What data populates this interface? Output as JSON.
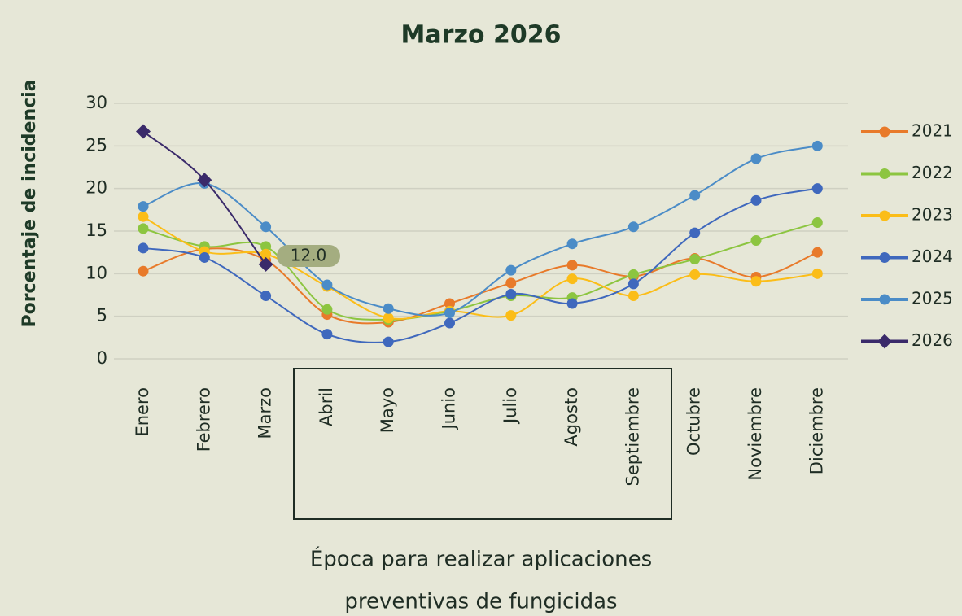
{
  "chart_data": {
    "type": "line",
    "title": "Marzo 2026",
    "ylabel": "Porcentaje de incidencia",
    "xlabel": [
      "Época para realizar aplicaciones",
      "preventivas de fungicidas"
    ],
    "annotation": "12.0",
    "categories": [
      "Enero",
      "Febrero",
      "Marzo",
      "Abril",
      "Mayo",
      "Junio",
      "Julio",
      "Agosto",
      "Septiembre",
      "Octubre",
      "Noviembre",
      "Diciembre"
    ],
    "ylim": [
      0,
      30
    ],
    "yticks": [
      0,
      5,
      10,
      15,
      20,
      25,
      30
    ],
    "grid": true,
    "legend": "right",
    "series": [
      {
        "name": "2021",
        "color": "#e87a2a",
        "marker": "circle",
        "values": [
          10.3,
          12.9,
          11.6,
          5.2,
          4.3,
          6.5,
          8.9,
          11.0,
          9.7,
          11.8,
          9.6,
          12.5
        ]
      },
      {
        "name": "2022",
        "color": "#8cc540",
        "marker": "circle",
        "values": [
          15.3,
          13.2,
          13.2,
          5.8,
          4.6,
          5.6,
          7.4,
          7.2,
          9.9,
          11.7,
          13.9,
          16.0
        ]
      },
      {
        "name": "2023",
        "color": "#fbbd18",
        "marker": "circle",
        "values": [
          16.7,
          12.6,
          12.3,
          8.5,
          4.8,
          5.6,
          5.1,
          9.4,
          7.4,
          9.9,
          9.1,
          10.0
        ]
      },
      {
        "name": "2024",
        "color": "#3f68bd",
        "marker": "circle",
        "values": [
          13.0,
          11.9,
          7.4,
          2.9,
          2.0,
          4.2,
          7.6,
          6.5,
          8.8,
          14.8,
          18.6,
          20.0
        ]
      },
      {
        "name": "2025",
        "color": "#4b8cc7",
        "marker": "circle",
        "values": [
          17.9,
          20.6,
          15.5,
          8.7,
          5.9,
          5.4,
          10.4,
          13.5,
          15.5,
          19.2,
          23.5,
          25.0
        ]
      },
      {
        "name": "2026",
        "color": "#3a2a6a",
        "marker": "diamond",
        "values": [
          26.7,
          21.0,
          11.1,
          null,
          null,
          null,
          null,
          null,
          null,
          null,
          null,
          null
        ]
      }
    ]
  }
}
